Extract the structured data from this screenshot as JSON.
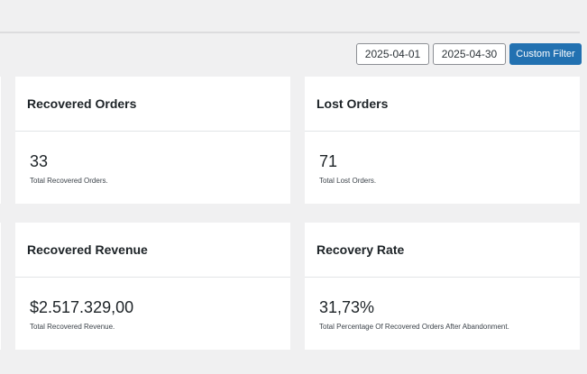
{
  "filters": {
    "date_from": "2025-04-01",
    "date_to": "2025-04-30",
    "custom_filter_label": "Custom Filter"
  },
  "cards": [
    {
      "title": "Recovered Orders",
      "value": "33",
      "description": "Total Recovered Orders."
    },
    {
      "title": "Lost Orders",
      "value": "71",
      "description": "Total Lost Orders."
    },
    {
      "title": "Recovered Revenue",
      "value": "$2.517.329,00",
      "description": "Total Recovered Revenue."
    },
    {
      "title": "Recovery Rate",
      "value": "31,73%",
      "description": "Total Percentage Of Recovered Orders After Abandonment."
    }
  ],
  "colors": {
    "accent": "#2271b1",
    "background": "#f0f0f1",
    "card": "#ffffff"
  }
}
